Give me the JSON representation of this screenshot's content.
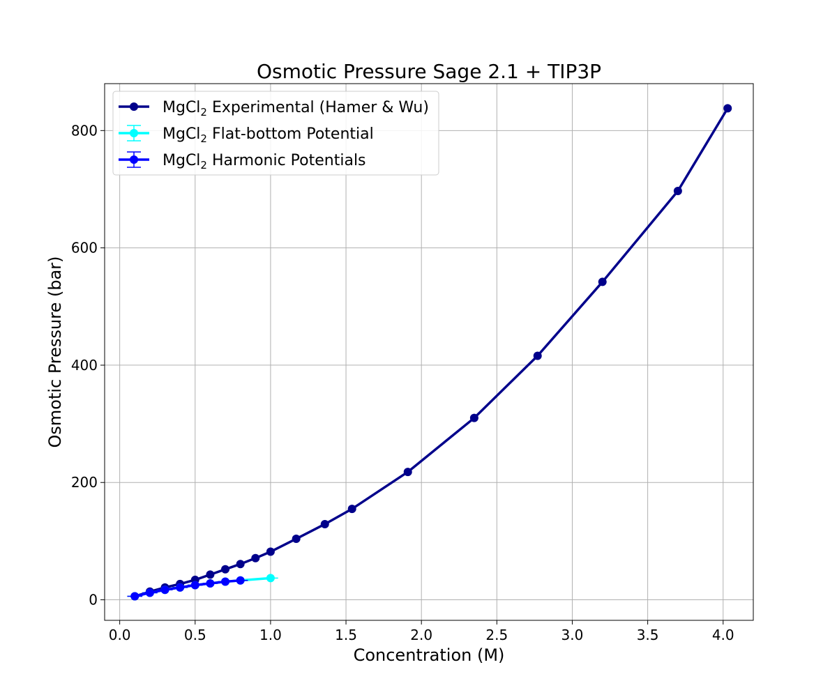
{
  "chart_data": {
    "type": "line",
    "title": "Osmotic Pressure Sage 2.1 + TIP3P",
    "xlabel": "Concentration (M)",
    "ylabel": "Osmotic Pressure (bar)",
    "xlim": [
      -0.1,
      4.2
    ],
    "ylim": [
      -35,
      880
    ],
    "grid": true,
    "legend_position": "top-left",
    "xticks": [
      0.0,
      0.5,
      1.0,
      1.5,
      2.0,
      2.5,
      3.0,
      3.5,
      4.0
    ],
    "xtick_labels": [
      "0.0",
      "0.5",
      "1.0",
      "1.5",
      "2.0",
      "2.5",
      "3.0",
      "3.5",
      "4.0"
    ],
    "yticks": [
      0,
      200,
      400,
      600,
      800
    ],
    "ytick_labels": [
      "0",
      "200",
      "400",
      "600",
      "800"
    ],
    "series": [
      {
        "legend_prefix": "MgCl",
        "legend_sub": "2",
        "legend_suffix": " Experimental (Hamer & Wu)",
        "color": "#00008b",
        "errorbars": false,
        "x": [
          0.1,
          0.2,
          0.3,
          0.4,
          0.5,
          0.6,
          0.7,
          0.8,
          0.9,
          1.0,
          1.17,
          1.36,
          1.54,
          1.91,
          2.35,
          2.77,
          3.2,
          3.7,
          4.03
        ],
        "y": [
          6,
          14,
          21,
          27,
          34,
          43,
          52,
          61,
          71,
          82,
          104,
          129,
          155,
          218,
          310,
          416,
          542,
          697,
          838
        ]
      },
      {
        "legend_prefix": "MgCl",
        "legend_sub": "2",
        "legend_suffix": " Flat-bottom Potential",
        "color": "#00ffff",
        "errorbars": true,
        "x": [
          0.1,
          0.2,
          0.3,
          0.4,
          0.5,
          0.6,
          0.7,
          0.8,
          1.0
        ],
        "y": [
          6,
          12,
          17,
          21,
          25,
          28,
          31,
          33,
          37
        ],
        "xerr": [
          0.05,
          0.05,
          0.05,
          0.05,
          0.05,
          0.05,
          0.05,
          0.05,
          0.05
        ],
        "yerr": [
          1,
          1,
          1,
          1,
          1,
          1,
          1,
          1,
          1
        ]
      },
      {
        "legend_prefix": "MgCl",
        "legend_sub": "2",
        "legend_suffix": " Harmonic Potentials",
        "color": "#0000ff",
        "errorbars": true,
        "x": [
          0.1,
          0.2,
          0.3,
          0.4,
          0.5,
          0.6,
          0.7,
          0.8
        ],
        "y": [
          6,
          12,
          17,
          21,
          25,
          28,
          31,
          33
        ],
        "xerr": [
          0.05,
          0.05,
          0.05,
          0.05,
          0.05,
          0.05,
          0.05,
          0.05
        ],
        "yerr": [
          1,
          1,
          1,
          1,
          1,
          1,
          1,
          1
        ]
      }
    ]
  }
}
